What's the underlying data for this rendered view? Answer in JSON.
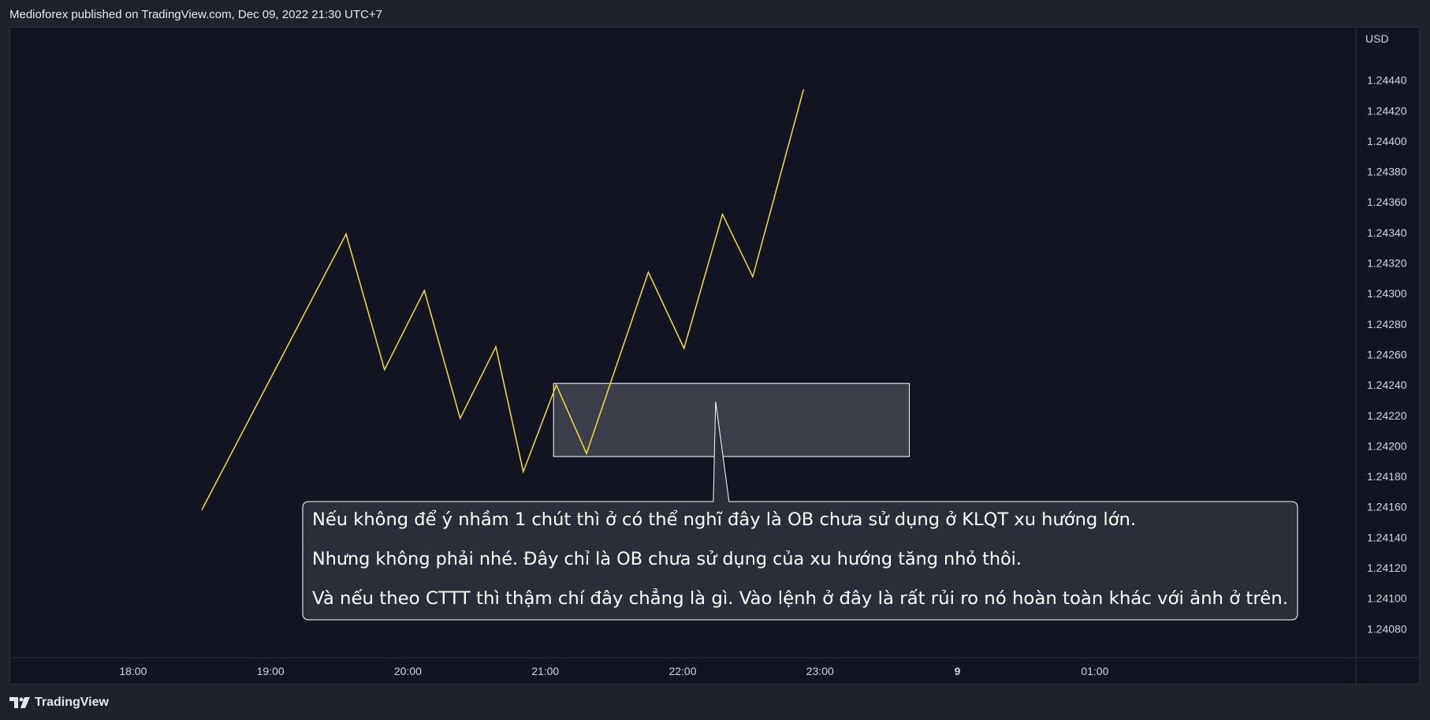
{
  "header": {
    "publish_info": "Medioforex published on TradingView.com, Dec 09, 2022 21:30 UTC+7"
  },
  "footer": {
    "brand": "TradingView"
  },
  "chart_data": {
    "type": "line",
    "currency_label": "USD",
    "y_ticks": [
      "1.24440",
      "1.24420",
      "1.24400",
      "1.24380",
      "1.24360",
      "1.24340",
      "1.24320",
      "1.24300",
      "1.24280",
      "1.24260",
      "1.24240",
      "1.24220",
      "1.24200",
      "1.24180",
      "1.24160",
      "1.24140",
      "1.24120",
      "1.24100",
      "1.24080"
    ],
    "x_ticks": [
      "18:00",
      "19:00",
      "20:00",
      "21:00",
      "22:00",
      "23:00",
      "9",
      "01:00"
    ],
    "x_range": [
      17.1,
      26.9
    ],
    "y_range": [
      1.24061,
      1.24475
    ],
    "series": [
      {
        "color": "#f2dc3c",
        "x": [
          18.5,
          19.55,
          19.83,
          20.12,
          20.38,
          20.64,
          20.84,
          21.08,
          21.3,
          21.75,
          22.01,
          22.29,
          22.51,
          22.88
        ],
        "y": [
          1.24158,
          1.24339,
          1.2425,
          1.24302,
          1.24218,
          1.24265,
          1.24183,
          1.2424,
          1.24195,
          1.24314,
          1.24264,
          1.24352,
          1.24311,
          1.24434
        ]
      }
    ],
    "zone": {
      "x_start": 21.06,
      "x_end": 23.65,
      "y_top": 1.24241,
      "y_bottom": 1.24193
    },
    "callout": {
      "pointer_x": 22.24,
      "pointer_y": 1.24229,
      "lines": [
        "Nếu không để ý nhầm 1 chút thì ở có thể nghĩ đây là OB chưa sử dụng ở KLQT xu hướng lớn.",
        "Nhưng không phải nhé. Đây chỉ là OB chưa sử dụng của xu hướng tăng nhỏ thôi.",
        "Và nếu theo CTTT thì thậm chí đây chẳng là gì. Vào lệnh ở đây là rất rủi ro nó hoàn toàn khác với ảnh ở trên."
      ]
    }
  }
}
